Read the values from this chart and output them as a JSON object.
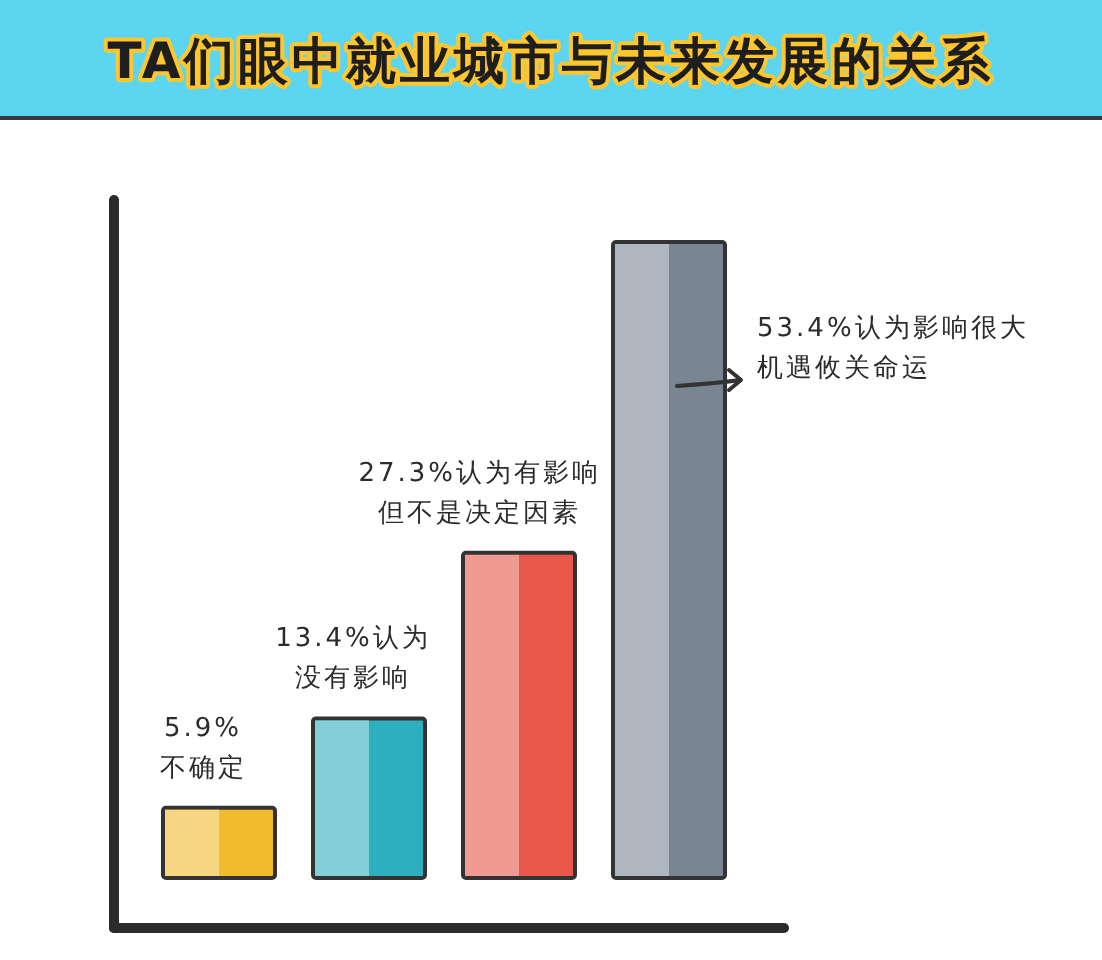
{
  "chart_data": {
    "type": "bar",
    "title": "TA们眼中就业城市与未来发展的关系",
    "categories": [
      null,
      null,
      null,
      null
    ],
    "values": [
      5.9,
      13.4,
      27.3,
      53.4
    ],
    "colors": [
      "#f2bb2e",
      "#2eafbd",
      "#e7574a",
      "#7a8594"
    ],
    "value_labels": [
      "5.9%不确定",
      "13.4%认为没有影响",
      "27.3%认为有影响但不是决定因素",
      "53.4%认为影响很大机遇攸关命运"
    ]
  }
}
